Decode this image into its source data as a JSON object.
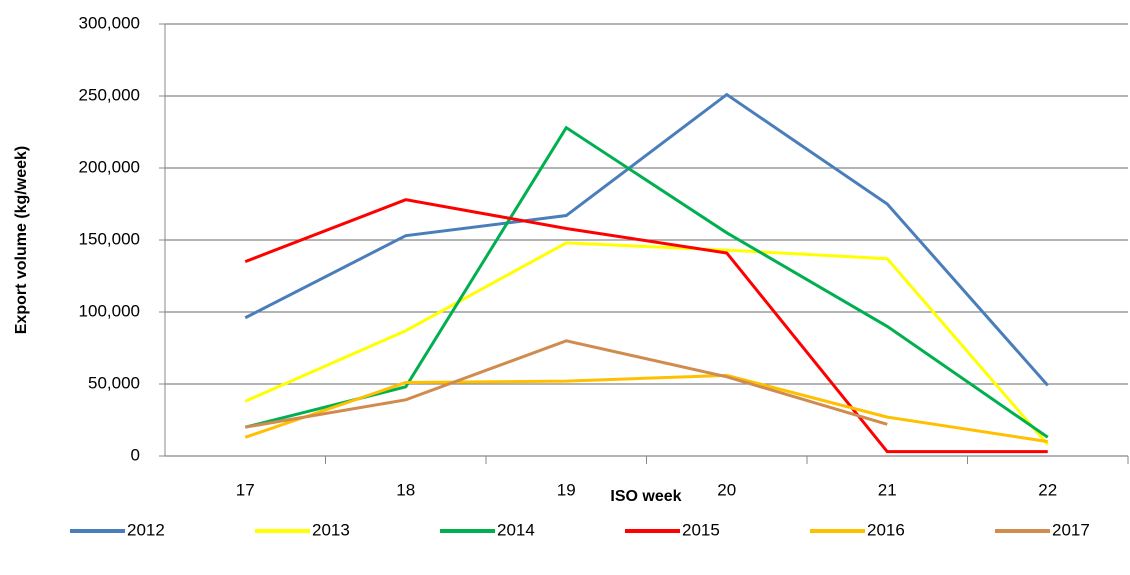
{
  "chart_data": {
    "type": "line",
    "x_label": "ISO week",
    "y_label": "Export volume (kg/week)",
    "categories": [
      "17",
      "18",
      "19",
      "20",
      "21",
      "22"
    ],
    "series": [
      {
        "name": "2012",
        "color": "#4a7ebb",
        "values": [
          96000,
          153000,
          167000,
          251000,
          175000,
          49000
        ]
      },
      {
        "name": "2013",
        "color": "#ffff00",
        "values": [
          38000,
          87000,
          148000,
          143000,
          137000,
          8000
        ]
      },
      {
        "name": "2014",
        "color": "#00b050",
        "values": [
          20000,
          48000,
          228000,
          155000,
          90000,
          13000
        ]
      },
      {
        "name": "2015",
        "color": "#ff0000",
        "values": [
          135000,
          178000,
          158000,
          141000,
          3000,
          3000
        ]
      },
      {
        "name": "2016",
        "color": "#ffc000",
        "values": [
          13000,
          51000,
          52000,
          56000,
          27000,
          10000
        ]
      },
      {
        "name": "2017",
        "color": "#d08b4f",
        "values": [
          20000,
          39000,
          80000,
          55000,
          22000,
          null
        ]
      }
    ],
    "ylim": [
      0,
      300000
    ],
    "yticks": [
      {
        "value": 0,
        "label": "0"
      },
      {
        "value": 50000,
        "label": "50,000"
      },
      {
        "value": 100000,
        "label": "100,000"
      },
      {
        "value": 150000,
        "label": "150,000"
      },
      {
        "value": 200000,
        "label": "200,000"
      },
      {
        "value": 250000,
        "label": "250,000"
      },
      {
        "value": 300000,
        "label": "300,000"
      }
    ],
    "grid": true,
    "legend": "bottom"
  }
}
